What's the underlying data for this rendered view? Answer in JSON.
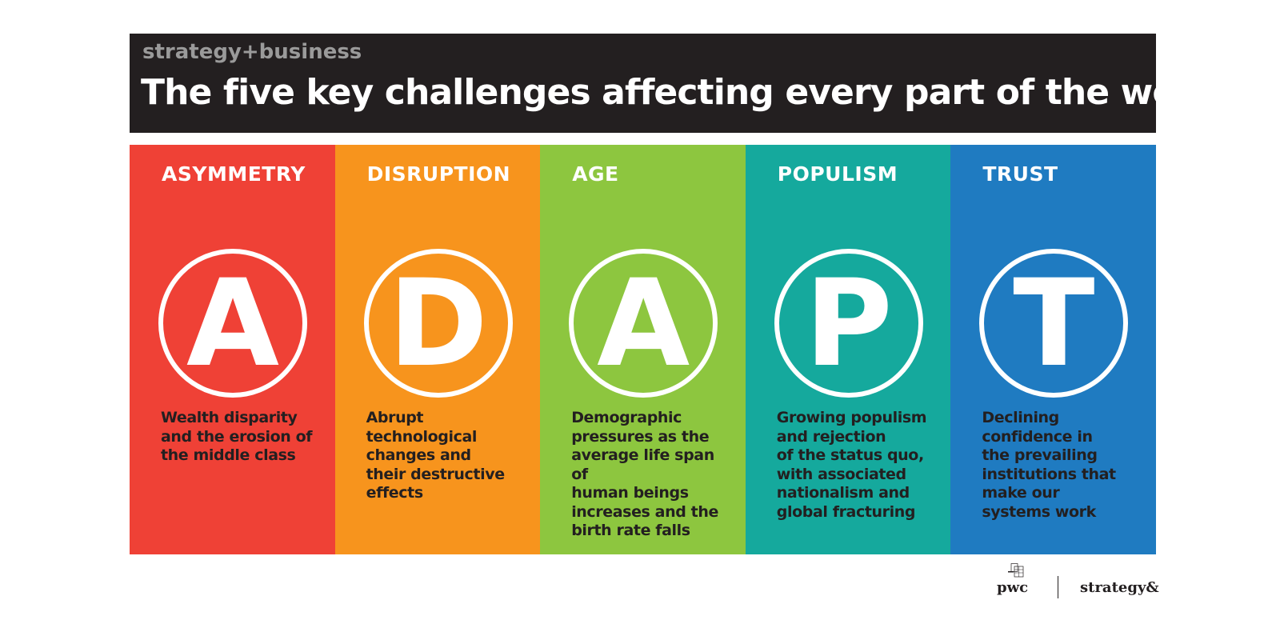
{
  "header": {
    "brand": "strategy+business",
    "title": "The five key challenges affecting every part of the world"
  },
  "columns": [
    {
      "label": "ASYMMETRY",
      "letter": "A",
      "description": "Wealth disparity\nand the erosion of\nthe middle class",
      "color": "#ef4136"
    },
    {
      "label": "DISRUPTION",
      "letter": "D",
      "description": "Abrupt\ntechnological\nchanges and\ntheir destructive\neffects",
      "color": "#f7941d"
    },
    {
      "label": "AGE",
      "letter": "A",
      "description": "Demographic\npressures as the\naverage life span of\nhuman beings\nincreases and the\nbirth rate falls",
      "color": "#8dc63f"
    },
    {
      "label": "POPULISM",
      "letter": "P",
      "description": "Growing populism\nand rejection\nof the status quo,\nwith associated\nnationalism and\nglobal fracturing",
      "color": "#15a99d"
    },
    {
      "label": "TRUST",
      "letter": "T",
      "description": "Declining\nconfidence in\nthe prevailing\ninstitutions that\nmake our\nsystems work",
      "color": "#1f7bc1"
    }
  ],
  "footer": {
    "pwc_logo": "pwc",
    "strategy_logo": "strategy&"
  }
}
